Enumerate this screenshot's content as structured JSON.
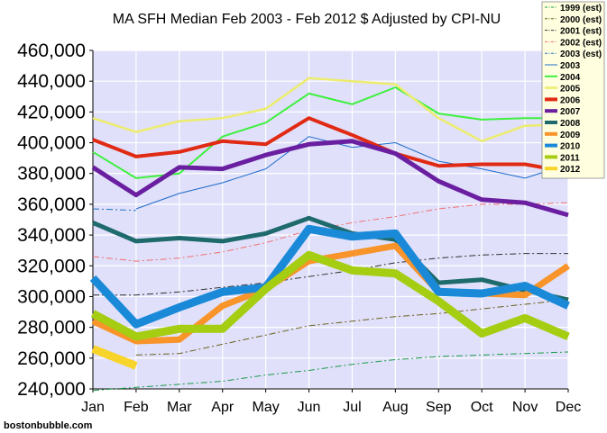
{
  "chart_data": {
    "type": "line",
    "title": "MA SFH Median Feb 2003 - Feb 2012 $ Adjusted by CPI-NU",
    "xlabel": "",
    "ylabel": "",
    "credit": "bostonbubble.com",
    "categories": [
      "Jan",
      "Feb",
      "Mar",
      "Apr",
      "May",
      "Jun",
      "Jul",
      "Aug",
      "Sep",
      "Oct",
      "Nov",
      "Dec"
    ],
    "ylim": [
      240000,
      460000
    ],
    "yticks": [
      240000,
      260000,
      280000,
      300000,
      320000,
      340000,
      360000,
      380000,
      400000,
      420000,
      440000,
      460000
    ],
    "ytick_labels": [
      "240,000",
      "260,000",
      "280,000",
      "300,000",
      "320,000",
      "340,000",
      "360,000",
      "380,000",
      "400,000",
      "420,000",
      "440,000",
      "460,000"
    ],
    "grid": true,
    "legend_position": "top-right",
    "background_color": "#e0e0fb",
    "grid_color": "#ffffff",
    "series": [
      {
        "name": "1999 (est)",
        "color": "#1a9a45",
        "style": "dashdot",
        "width": 1,
        "values": [
          239000,
          241000,
          243000,
          245000,
          249000,
          252000,
          256000,
          259000,
          261000,
          262000,
          263000,
          264000
        ]
      },
      {
        "name": "2000 (est)",
        "color": "#6a5f1a",
        "style": "dashdot",
        "width": 1,
        "values": [
          null,
          262000,
          263000,
          269000,
          275000,
          281000,
          284000,
          287000,
          289000,
          292000,
          295000,
          298000
        ]
      },
      {
        "name": "2001 (est)",
        "color": "#303030",
        "style": "dashdot",
        "width": 1,
        "values": [
          301000,
          301000,
          303000,
          306000,
          309000,
          313000,
          317000,
          322000,
          325000,
          327000,
          328000,
          328000
        ]
      },
      {
        "name": "2002 (est)",
        "color": "#ef6f6f",
        "style": "dashdot",
        "width": 1,
        "values": [
          326000,
          323000,
          325000,
          329000,
          335000,
          343000,
          348000,
          352000,
          357000,
          360000,
          360000,
          361000
        ]
      },
      {
        "name": "2003 (est)",
        "color": "#2070c0",
        "style": "dashdot",
        "width": 1,
        "values": [
          357000,
          356000,
          null,
          null,
          null,
          null,
          null,
          null,
          null,
          null,
          null,
          null
        ]
      },
      {
        "name": "2003",
        "color": "#1d6bc9",
        "style": "solid",
        "width": 1,
        "values": [
          null,
          357000,
          367000,
          374000,
          383000,
          404000,
          397000,
          400000,
          388000,
          383000,
          377000,
          386000
        ]
      },
      {
        "name": "2004",
        "color": "#3ef03e",
        "style": "solid",
        "width": 2,
        "values": [
          394000,
          377000,
          380000,
          404000,
          413000,
          432000,
          425000,
          436000,
          419000,
          415000,
          416000,
          416000
        ]
      },
      {
        "name": "2005",
        "color": "#ecec6e",
        "style": "solid",
        "width": 2.5,
        "values": [
          416000,
          407000,
          414000,
          416000,
          422000,
          442000,
          440000,
          438000,
          416000,
          401000,
          411000,
          412000
        ]
      },
      {
        "name": "2006",
        "color": "#e02a14",
        "style": "solid",
        "width": 4,
        "values": [
          402000,
          391000,
          394000,
          401000,
          399000,
          416000,
          405000,
          393000,
          385000,
          386000,
          386000,
          381000
        ]
      },
      {
        "name": "2007",
        "color": "#6a1ea0",
        "style": "solid",
        "width": 5,
        "values": [
          384000,
          366000,
          384000,
          383000,
          392000,
          399000,
          401000,
          393000,
          375000,
          363000,
          361000,
          353000
        ]
      },
      {
        "name": "2008",
        "color": "#1e6a6c",
        "style": "solid",
        "width": 5,
        "values": [
          348000,
          336000,
          338000,
          336000,
          341000,
          351000,
          341000,
          337000,
          309000,
          311000,
          304000,
          298000
        ]
      },
      {
        "name": "2009",
        "color": "#f8942a",
        "style": "solid",
        "width": 7,
        "values": [
          284000,
          271000,
          272000,
          294000,
          305000,
          323000,
          328000,
          333000,
          303000,
          302000,
          301000,
          320000
        ]
      },
      {
        "name": "2010",
        "color": "#1a8ad8",
        "style": "solid",
        "width": 9,
        "values": [
          312000,
          282000,
          293000,
          303000,
          306000,
          344000,
          339000,
          341000,
          303000,
          302000,
          307000,
          294000
        ]
      },
      {
        "name": "2011",
        "color": "#a5cd12",
        "style": "solid",
        "width": 9,
        "values": [
          289000,
          274000,
          279000,
          279000,
          305000,
          327000,
          317000,
          315000,
          297000,
          276000,
          286000,
          274000
        ]
      },
      {
        "name": "2012",
        "color": "#f8d42a",
        "style": "solid",
        "width": 9,
        "values": [
          266000,
          255000,
          null,
          null,
          null,
          null,
          null,
          null,
          null,
          null,
          null,
          null
        ]
      }
    ]
  }
}
